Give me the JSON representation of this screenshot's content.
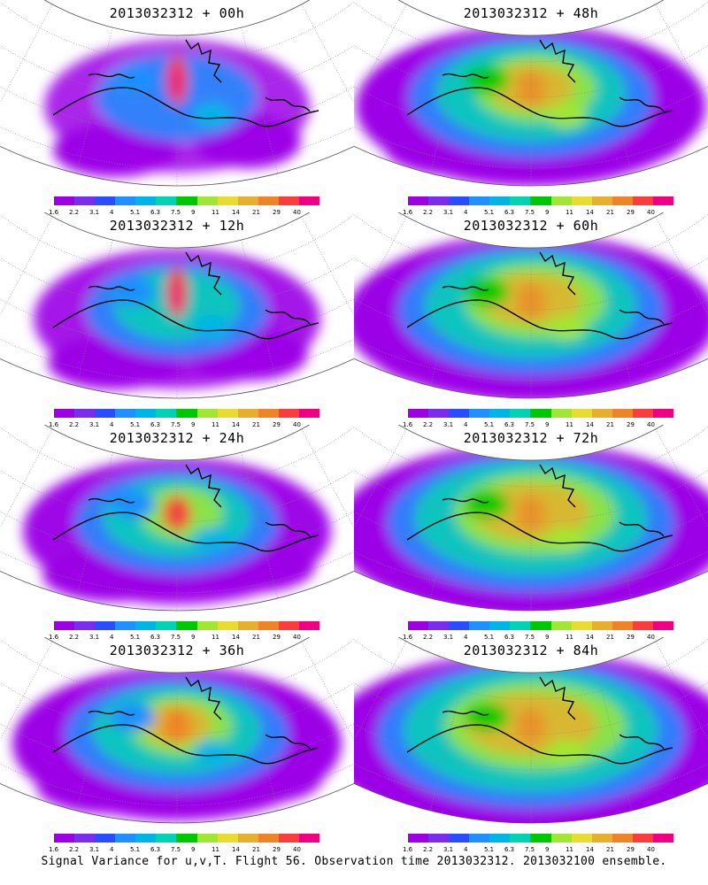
{
  "panels": [
    {
      "title": "2013032312 + 00h",
      "intensity": 0
    },
    {
      "title": "2013032312 + 48h",
      "intensity": 4
    },
    {
      "title": "2013032312 + 12h",
      "intensity": 1
    },
    {
      "title": "2013032312 + 60h",
      "intensity": 5
    },
    {
      "title": "2013032312 + 24h",
      "intensity": 2
    },
    {
      "title": "2013032312 + 72h",
      "intensity": 6
    },
    {
      "title": "2013032312 + 36h",
      "intensity": 3
    },
    {
      "title": "2013032312 + 84h",
      "intensity": 7
    }
  ],
  "colorbar": {
    "labels": [
      "1.6",
      "2.2",
      "3.1",
      "4",
      "5.1",
      "6.3",
      "7.5",
      "9",
      "11",
      "14",
      "21",
      "29",
      "40"
    ],
    "colors": [
      "#9b00e6",
      "#7a2cf0",
      "#2a4cff",
      "#1e90ff",
      "#00b4e6",
      "#00d2b4",
      "#00c800",
      "#a0e632",
      "#e6dc32",
      "#e6af2d",
      "#f08228",
      "#fa3c3c",
      "#f00082"
    ]
  },
  "footer": "Signal Variance for u,v,T. Flight 56. Observation time 2013032312. 2013032100 ensemble."
}
